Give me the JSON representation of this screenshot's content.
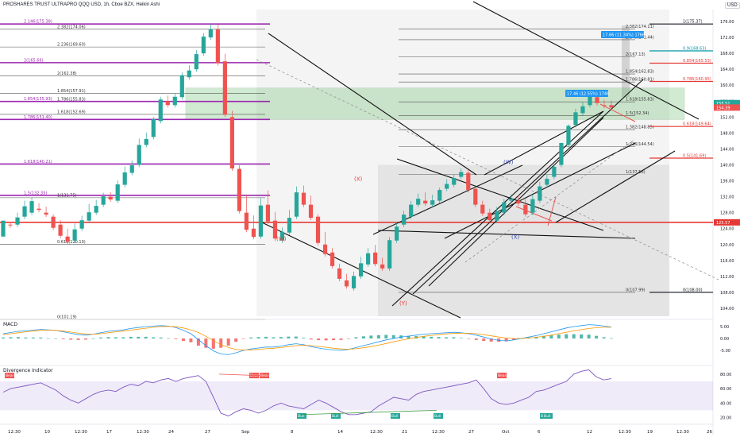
{
  "header": {
    "title": "PROSHARES TRUST ULTRAPRO QQQ USD, 1h, Cboe BZX, Heikin Ashi",
    "currency": "USD"
  },
  "colors": {
    "fib_purple": "#9c27b0",
    "support_red": "#e53935",
    "zone_green": "#4caf50",
    "bull": "#26a69a",
    "bear": "#ef5350",
    "label_blue": "#2196f3",
    "gray_fib": "#555555",
    "indicator_purple": "#7e57c2"
  },
  "chart_data": {
    "type": "candlestick",
    "price_axis": {
      "ylim": [
        102,
        179
      ],
      "ticks": [
        "176.00",
        "172.00",
        "168.00",
        "164.00",
        "160.00",
        "156.00",
        "152.00",
        "148.00",
        "144.00",
        "140.00",
        "136.00",
        "132.00",
        "128.00",
        "124.00",
        "120.00",
        "116.00",
        "112.00",
        "108.00",
        "104.00"
      ],
      "tick_values": [
        176,
        172,
        168,
        164,
        160,
        156,
        152,
        148,
        144,
        140,
        136,
        132,
        128,
        124,
        120,
        116,
        112,
        108,
        104
      ],
      "current_price_labels": [
        {
          "text": "155.51",
          "value": 155.51,
          "color": "#26a69a"
        },
        {
          "text": "154.39",
          "value": 154.39,
          "color": "#ef5350"
        },
        {
          "text": "125.57",
          "value": 125.57,
          "color": "#e53935"
        }
      ]
    },
    "time_axis": {
      "labels": [
        "12:30",
        "10",
        "12:30",
        "17",
        "12:30",
        "24",
        "27",
        "Sep",
        "8",
        "14",
        "12:30",
        "21",
        "12:30",
        "27",
        "Oct",
        "6",
        "12",
        "12:30",
        "19",
        "12:30",
        "26"
      ]
    },
    "support_line": {
      "value": 125.57
    },
    "left_fib": [
      {
        "label": "2.146(175.38)",
        "value": 175.38,
        "style": "purple"
      },
      {
        "label": "2.382(174.06)",
        "value": 174.06,
        "style": "gray"
      },
      {
        "label": "2.236(169.60)",
        "value": 169.6,
        "style": "gray"
      },
      {
        "label": "2(165.66)",
        "value": 165.66,
        "style": "purple"
      },
      {
        "label": "2(162.38)",
        "value": 162.38,
        "style": "gray"
      },
      {
        "label": "1.854(157.91)",
        "value": 157.91,
        "style": "gray"
      },
      {
        "label": "1.786(155.83)",
        "value": 155.83,
        "style": "gray"
      },
      {
        "label": "1.854(155.93)",
        "value": 155.93,
        "style": "purple"
      },
      {
        "label": "1.618(152.69)",
        "value": 152.69,
        "style": "gray"
      },
      {
        "label": "1.786(151.40)",
        "value": 151.4,
        "style": "purple"
      },
      {
        "label": "1.618(140.21)",
        "value": 140.21,
        "style": "purple"
      },
      {
        "label": "1.5(132.35)",
        "value": 132.35,
        "style": "purple"
      },
      {
        "label": "1(131.75)",
        "value": 131.75,
        "style": "gray"
      },
      {
        "label": "0.618(120.10)",
        "value": 120.1,
        "style": "gray"
      },
      {
        "label": "0(101.19)",
        "value": 101.19,
        "style": "gray"
      }
    ],
    "right_fib_gray": [
      {
        "label": "2.382(174.11)",
        "value": 174.11
      },
      {
        "label": "2.146(171.44)",
        "value": 171.44
      },
      {
        "label": "2(167.13)",
        "value": 167.13
      },
      {
        "label": "1.854(162.83)",
        "value": 162.83
      },
      {
        "label": "1.786(160.81)",
        "value": 160.81
      },
      {
        "label": "1.618(155.83)",
        "value": 155.83
      },
      {
        "label": "1.5(152.34)",
        "value": 152.34
      },
      {
        "label": "1.382(148.85)",
        "value": 148.85
      },
      {
        "label": "1.236(144.54)",
        "value": 144.54
      },
      {
        "label": "1(137.56)",
        "value": 137.56
      },
      {
        "label": "0(107.99)",
        "value": 107.99
      }
    ],
    "right_fib_colored": [
      {
        "label": "1(175.37)",
        "value": 175.37,
        "color": "#131722"
      },
      {
        "label": "0.9(168.63)",
        "value": 168.63,
        "color": "#0097a7"
      },
      {
        "label": "0.854(165.53)",
        "value": 165.53,
        "color": "#e53935"
      },
      {
        "label": "0.786(160.95)",
        "value": 160.95,
        "color": "#e53935"
      },
      {
        "label": "0.618(149.64)",
        "value": 149.64,
        "color": "#e53935"
      },
      {
        "label": "0.5(141.69)",
        "value": 141.69,
        "color": "#e53935"
      },
      {
        "label": "0(108.00)",
        "value": 108.0,
        "color": "#131722"
      }
    ],
    "zone": {
      "low": 151.4,
      "high": 159.3
    },
    "wave_labels": [
      {
        "text": "(X)",
        "value": 136.0,
        "color": "#e53935"
      },
      {
        "text": "(W)",
        "value": 121.0,
        "color": "#e53935"
      },
      {
        "text": "(Y)",
        "value": 104.8,
        "color": "#e53935"
      },
      {
        "text": "(W)",
        "value": 140.2,
        "color": "#3949ab"
      },
      {
        "text": "(X)",
        "value": 121.4,
        "color": "#3949ab"
      }
    ],
    "measure_labels": [
      {
        "text": "17.66 (11.34%) 1766"
      },
      {
        "text": "17.46 (12.55%) 1746"
      }
    ],
    "candles": [
      [
        101,
        122,
        121.5,
        126
      ],
      [
        102,
        125,
        125.4,
        124.8
      ],
      [
        103,
        125,
        128,
        126.8
      ],
      [
        104,
        127,
        131,
        129.6
      ],
      [
        105,
        128,
        131.8,
        130.9
      ],
      [
        106,
        129,
        130.4,
        128.7
      ],
      [
        107,
        128,
        129.5,
        127.5
      ],
      [
        108,
        127,
        127.6,
        124.2
      ],
      [
        109,
        125,
        126.1,
        122.2
      ],
      [
        110,
        122,
        124,
        120.7
      ],
      [
        111,
        121,
        125.3,
        123.8
      ],
      [
        112,
        124,
        127.2,
        126.1
      ],
      [
        113,
        126,
        130.2,
        128.1
      ],
      [
        114,
        128,
        131.2,
        129.7
      ],
      [
        115,
        130,
        133,
        132.1
      ],
      [
        116,
        132,
        133.2,
        131.3
      ],
      [
        117,
        131,
        136.1,
        135.1
      ],
      [
        118,
        135,
        139.6,
        138.1
      ],
      [
        119,
        138,
        141.1,
        139.9
      ],
      [
        120,
        140,
        146.6,
        145
      ],
      [
        121,
        145,
        148.1,
        146.5
      ],
      [
        122,
        147,
        152,
        151.5
      ],
      [
        123,
        151,
        157.1,
        156.4
      ],
      [
        124,
        156,
        157.4,
        155
      ],
      [
        125,
        155,
        157.9,
        157.1
      ],
      [
        126,
        157,
        163.2,
        162.5
      ],
      [
        127,
        162,
        165,
        163.7
      ],
      [
        128,
        164,
        168.8,
        167.8
      ],
      [
        129,
        168,
        173.1,
        172.2
      ],
      [
        130,
        172,
        175.3,
        174.1
      ],
      [
        131,
        174,
        175.2,
        165.5
      ],
      [
        132,
        166,
        167.9,
        152.6
      ],
      [
        133,
        152,
        153.6,
        139.1
      ],
      [
        134,
        139,
        139.9,
        128.4
      ],
      [
        135,
        128,
        132.4,
        123.7
      ],
      [
        136,
        124,
        127.3,
        121.9
      ],
      [
        137,
        122,
        131.6,
        129.8
      ],
      [
        138,
        130,
        133.6,
        125.8
      ],
      [
        139,
        126,
        128.2,
        121.5
      ],
      [
        140,
        121,
        124.3,
        123.2
      ],
      [
        141,
        123,
        128.7,
        126.7
      ],
      [
        142,
        127,
        134.6,
        133.1
      ],
      [
        143,
        133,
        134.8,
        130
      ],
      [
        144,
        130,
        132.3,
        126.7
      ],
      [
        145,
        127,
        127.6,
        120.4
      ],
      [
        146,
        120,
        123.2,
        117.6
      ],
      [
        147,
        118,
        119.1,
        114.6
      ],
      [
        148,
        114,
        115.2,
        111.4
      ],
      [
        149,
        111,
        112.6,
        109.5
      ],
      [
        150,
        109,
        113.2,
        112.1
      ],
      [
        151,
        112,
        116.9,
        115.3
      ],
      [
        152,
        115,
        119.1,
        117.8
      ],
      [
        153,
        118,
        119.9,
        115.1
      ],
      [
        154,
        115,
        116.7,
        114
      ],
      [
        155,
        114,
        121.9,
        121.1
      ],
      [
        156,
        121,
        125.6,
        124.5
      ],
      [
        157,
        125,
        128.5,
        127.5
      ],
      [
        158,
        127,
        130.9,
        130
      ],
      [
        159,
        130,
        132.8,
        131.5
      ],
      [
        160,
        131,
        133.1,
        130.3
      ],
      [
        161,
        130,
        132.5,
        131.1
      ],
      [
        162,
        131,
        134.3,
        133.7
      ],
      [
        163,
        134,
        136.4,
        135.2
      ],
      [
        164,
        135,
        137.6,
        136.7
      ],
      [
        165,
        137,
        139.1,
        138.2
      ],
      [
        166,
        138,
        138.8,
        133.7
      ],
      [
        167,
        134,
        134.6,
        130
      ],
      [
        168,
        130,
        131,
        127.8
      ],
      [
        169,
        128,
        129,
        126.1
      ],
      [
        170,
        126,
        129.4,
        128.3
      ],
      [
        171,
        128,
        131.5,
        130.6
      ],
      [
        172,
        131,
        132.6,
        131.5
      ],
      [
        173,
        131,
        132.4,
        130.3
      ],
      [
        174,
        130,
        131.4,
        127.6
      ],
      [
        175,
        128,
        132.5,
        131.4
      ],
      [
        176,
        131,
        135.7,
        134.6
      ],
      [
        177,
        135,
        137.6,
        136.5
      ],
      [
        178,
        137,
        140.2,
        139.5
      ],
      [
        179,
        140,
        140.2,
        145.5
      ],
      [
        180,
        145,
        150.2,
        149.8
      ],
      [
        181,
        150,
        154.1,
        153.2
      ],
      [
        182,
        153,
        155.8,
        154.7
      ],
      [
        183,
        155,
        157.7,
        157.1
      ],
      [
        184,
        157,
        158.6,
        155.5
      ],
      [
        185,
        155,
        156.3,
        154.8
      ],
      [
        186,
        155,
        156.1,
        154.4
      ]
    ],
    "macd_panel": {
      "title": "MACD",
      "ticks": [
        "5.00",
        "0.00",
        "-5.00"
      ],
      "tick_values": [
        5,
        0,
        -5
      ],
      "ylim": [
        -8,
        8
      ],
      "macd_line": [
        2,
        2.5,
        3,
        3.2,
        3.5,
        3.8,
        3.6,
        3.4,
        2.8,
        2.2,
        1.6,
        1.4,
        1.8,
        2.4,
        3,
        3.3,
        3.6,
        4.2,
        4.6,
        5,
        5.2,
        5.4,
        5.2,
        4.6,
        3.4,
        2,
        -0.5,
        -3,
        -5.2,
        -6.5,
        -6.8,
        -6,
        -5,
        -4.4,
        -4,
        -3.6,
        -3.6,
        -3.2,
        -2.6,
        -2.2,
        -2.6,
        -3.4,
        -4,
        -4.5,
        -4.8,
        -5,
        -4.6,
        -3.8,
        -3,
        -2.2,
        -1.4,
        -0.6,
        0,
        0.6,
        1,
        1.4,
        1.8,
        2,
        2.2,
        2.4,
        2.6,
        2.4,
        2,
        1.4,
        0.6,
        -0.2,
        -0.8,
        -1,
        -0.6,
        0,
        0.6,
        1.2,
        2,
        2.8,
        3.6,
        4.4,
        5,
        5.4,
        5.8,
        5.6,
        5.2,
        4.8
      ],
      "signal_line": [
        1.6,
        2,
        2.4,
        2.8,
        3.1,
        3.4,
        3.5,
        3.4,
        3.1,
        2.7,
        2.2,
        1.9,
        1.8,
        2,
        2.4,
        2.8,
        3.1,
        3.5,
        3.9,
        4.3,
        4.7,
        5,
        5.1,
        4.9,
        4.4,
        3.6,
        2.5,
        0.9,
        -0.9,
        -2.6,
        -3.8,
        -4.6,
        -4.8,
        -4.8,
        -4.6,
        -4.3,
        -4.1,
        -3.8,
        -3.4,
        -3,
        -2.9,
        -3,
        -3.3,
        -3.7,
        -4.1,
        -4.4,
        -4.5,
        -4.3,
        -3.9,
        -3.4,
        -2.8,
        -2.1,
        -1.4,
        -0.7,
        -0.1,
        0.4,
        0.9,
        1.3,
        1.6,
        1.9,
        2.1,
        2.2,
        2.2,
        2,
        1.6,
        1.1,
        0.6,
        0.2,
        0,
        0,
        0.2,
        0.5,
        0.9,
        1.4,
        2,
        2.6,
        3.2,
        3.7,
        4.2,
        4.5,
        4.7,
        4.7
      ]
    },
    "divergence_panel": {
      "title": "Divergence Indicator",
      "ticks": [
        "80.00",
        "60.00",
        "40.00",
        "20.00"
      ],
      "tick_values": [
        80,
        60,
        40,
        20
      ],
      "ylim": [
        15,
        92
      ],
      "band": [
        30,
        70
      ],
      "rsi": [
        55,
        60,
        62,
        64,
        66,
        68,
        63,
        58,
        50,
        44,
        40,
        46,
        52,
        56,
        58,
        56,
        62,
        66,
        64,
        70,
        68,
        72,
        74,
        70,
        74,
        76,
        78,
        70,
        48,
        26,
        22,
        28,
        32,
        30,
        26,
        30,
        36,
        40,
        36,
        34,
        32,
        38,
        44,
        40,
        34,
        28,
        24,
        24,
        26,
        28,
        36,
        42,
        48,
        46,
        44,
        52,
        56,
        58,
        60,
        62,
        64,
        66,
        68,
        72,
        60,
        46,
        40,
        38,
        40,
        44,
        48,
        56,
        58,
        62,
        66,
        70,
        80,
        84,
        86,
        76,
        72,
        74
      ],
      "bear_labels": 4,
      "bull_labels": 6,
      "tag_bear": "Bear",
      "tag_bull": "Bull"
    }
  }
}
